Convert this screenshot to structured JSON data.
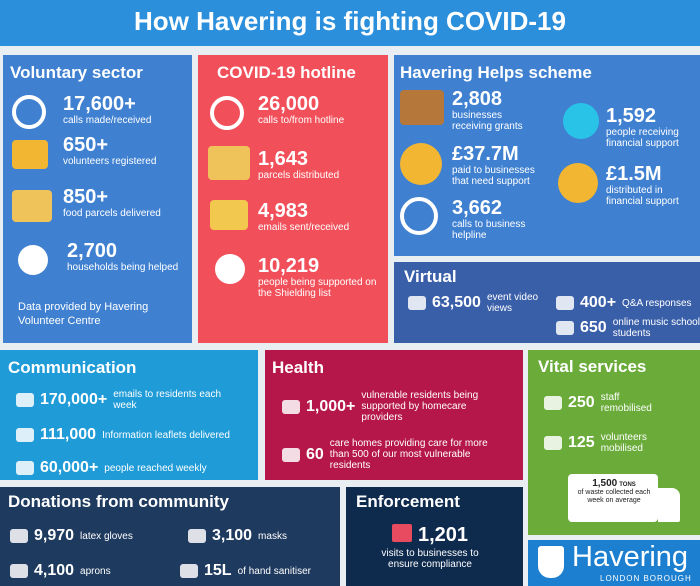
{
  "header": {
    "title": "How Havering is fighting COVID-19"
  },
  "panels": [
    {
      "title": "Voluntary sector",
      "stats": [
        {
          "value": "17,600+",
          "label": "calls made/received"
        },
        {
          "value": "650+",
          "label": "volunteers registered"
        },
        {
          "value": "850+",
          "label": "food parcels delivered"
        },
        {
          "value": "2,700",
          "label": "households being helped"
        }
      ],
      "note": "Data provided by Havering Volunteer Centre"
    },
    {
      "title": "COVID-19 hotline",
      "stats": [
        {
          "value": "26,000",
          "label": "calls to/from hotline"
        },
        {
          "value": "1,643",
          "label": "parcels distributed"
        },
        {
          "value": "4,983",
          "label": "emails sent/received"
        },
        {
          "value": "10,219",
          "label": "people being supported on the Shielding list"
        }
      ]
    },
    {
      "title": "Havering Helps scheme",
      "stats": [
        {
          "value": "2,808",
          "label": "businesses receiving grants"
        },
        {
          "value": "£37.7M",
          "label": "paid to businesses that need support"
        },
        {
          "value": "3,662",
          "label": "calls to business helpline"
        },
        {
          "value": "1,592",
          "label": "people receiving financial support"
        },
        {
          "value": "£1.5M",
          "label": "distributed in financial support"
        }
      ]
    },
    {
      "title": "Virtual",
      "stats": [
        {
          "value": "63,500",
          "label": "event video views"
        },
        {
          "value": "400+",
          "label": "Q&A responses"
        },
        {
          "value": "650",
          "label": "online music school students"
        }
      ]
    },
    {
      "title": "Communication",
      "stats": [
        {
          "value": "170,000+",
          "label": "emails to residents each week"
        },
        {
          "value": "111,000",
          "label": "Information leaflets delivered"
        },
        {
          "value": "60,000+",
          "label": "people reached weekly"
        }
      ]
    },
    {
      "title": "Health",
      "stats": [
        {
          "value": "1,000+",
          "label": "vulnerable residents being supported by homecare providers"
        },
        {
          "value": "60",
          "label": "care homes providing care for more than 500 of our most vulnerable residents"
        }
      ]
    },
    {
      "title": "Vital services",
      "stats": [
        {
          "value": "250",
          "label": "staff remobilised"
        },
        {
          "value": "125",
          "label": "volunteers mobilised"
        }
      ],
      "truck": {
        "value": "1,500",
        "unit": "TONS",
        "label": "of waste collected each week on average"
      }
    },
    {
      "title": "Donations from community",
      "stats": [
        {
          "value": "9,970",
          "label": "latex gloves"
        },
        {
          "value": "3,100",
          "label": "masks"
        },
        {
          "value": "4,100",
          "label": "aprons"
        },
        {
          "value": "15L",
          "label": "of hand sanitiser"
        }
      ]
    },
    {
      "title": "Enforcement",
      "stats": [
        {
          "value": "1,201",
          "label": "visits to businesses to ensure compliance"
        }
      ]
    }
  ],
  "logo": {
    "name": "Havering",
    "subtitle": "LONDON BOROUGH"
  }
}
